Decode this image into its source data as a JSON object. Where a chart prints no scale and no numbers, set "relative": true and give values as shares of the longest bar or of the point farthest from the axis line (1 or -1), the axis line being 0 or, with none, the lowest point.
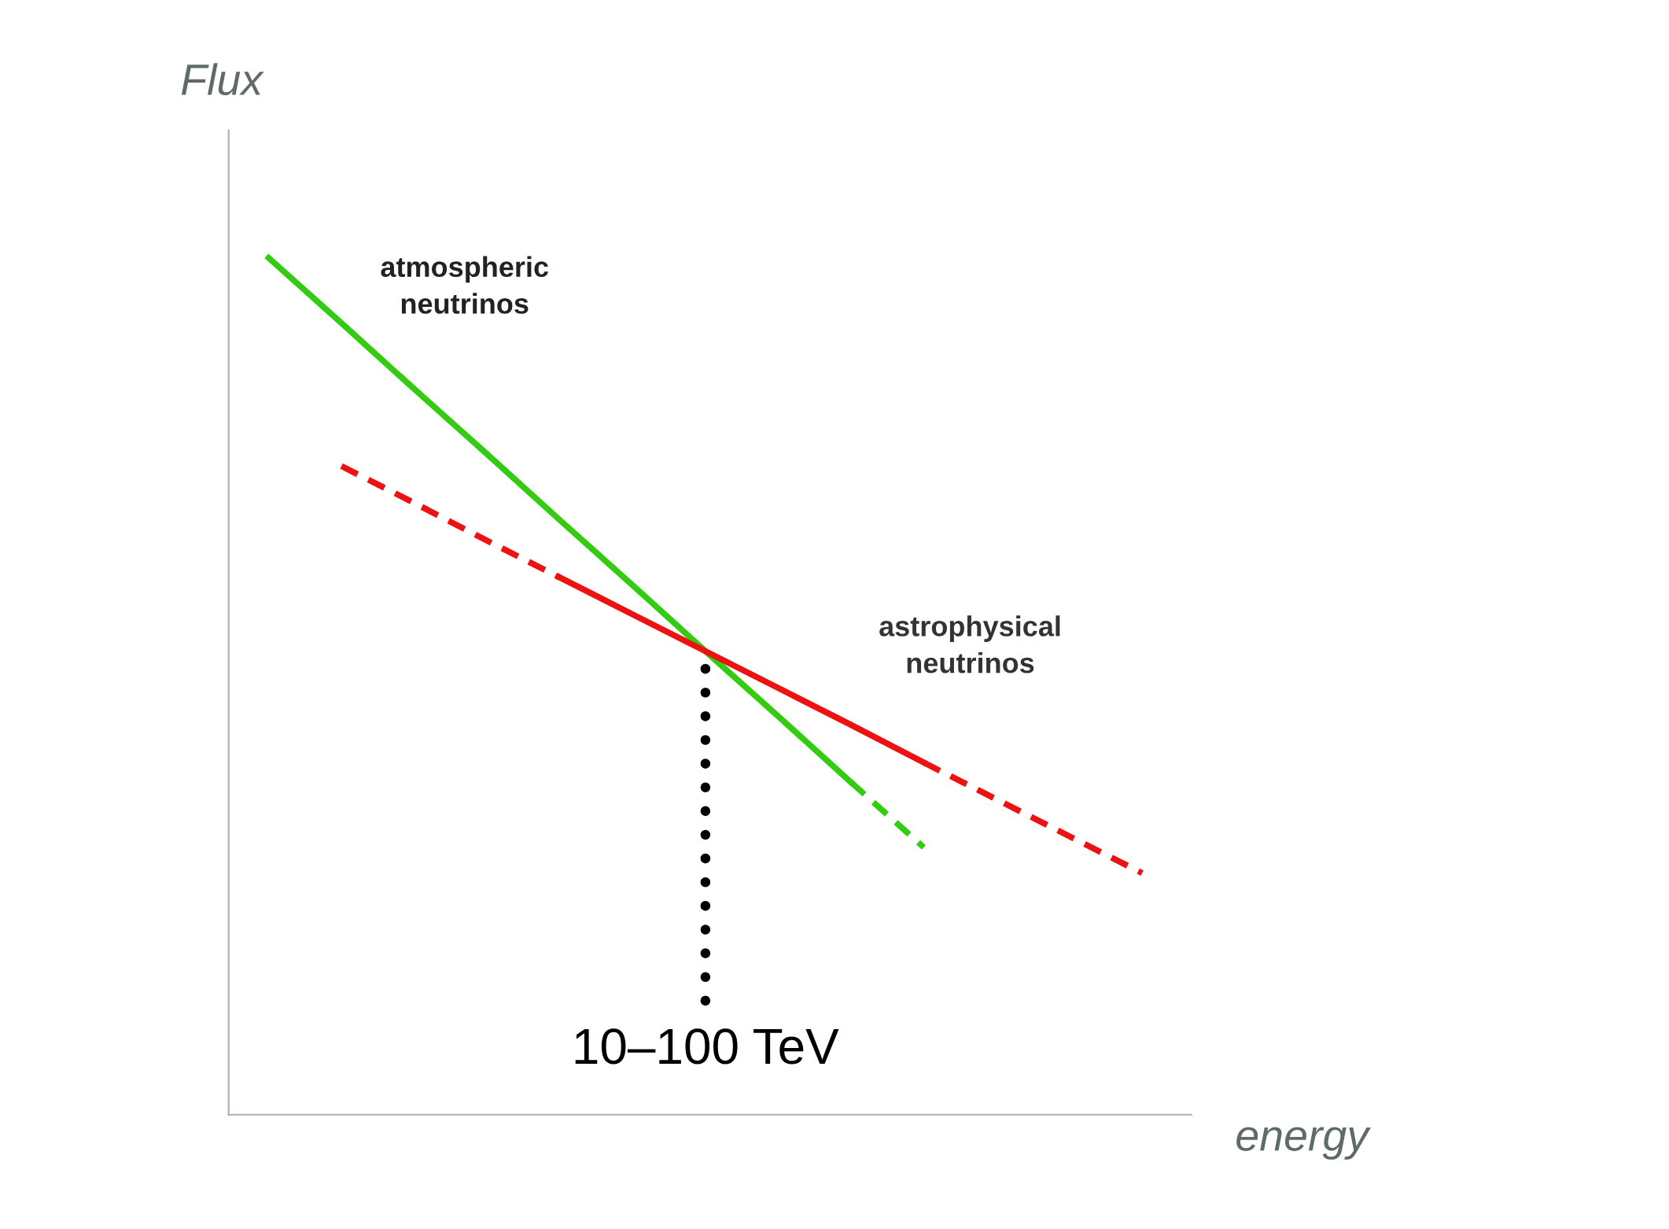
{
  "chart_data": {
    "type": "line",
    "relative": true,
    "legend": false,
    "marker": "none",
    "xlabel": "energy",
    "ylabel": "Flux",
    "categories": [
      null,
      null,
      null,
      null,
      null,
      null,
      null,
      null,
      null,
      null,
      null,
      null,
      null
    ],
    "series": [
      {
        "color": "#33cc11",
        "line_style": "solid",
        "values": [
          1.0,
          0.924,
          0.847,
          0.771,
          0.694,
          0.618,
          0.541,
          0.465,
          0.388,
          null,
          null,
          null,
          null
        ]
      },
      {
        "color": "#33cc11",
        "line_style": "dashed",
        "values": [
          null,
          null,
          null,
          null,
          null,
          null,
          null,
          null,
          0.388,
          0.312,
          null,
          null,
          null
        ]
      },
      {
        "color": "#ee1111",
        "line_style": "dashed",
        "values": [
          null,
          0.757,
          0.714,
          0.67,
          0.627,
          null,
          null,
          null,
          null,
          null,
          null,
          null,
          null
        ]
      },
      {
        "color": "#ee1111",
        "line_style": "solid",
        "values": [
          null,
          null,
          null,
          null,
          0.627,
          0.584,
          0.541,
          0.498,
          0.455,
          0.411,
          null,
          null,
          null
        ]
      },
      {
        "color": "#ee1111",
        "line_style": "dashed",
        "values": [
          null,
          null,
          null,
          null,
          null,
          null,
          null,
          null,
          null,
          0.411,
          0.368,
          0.325,
          0.282
        ]
      }
    ],
    "annotations": [
      "atmospheric\nneutrinos",
      "astrophysical\nneutrinos",
      "10–100 TeV"
    ]
  }
}
